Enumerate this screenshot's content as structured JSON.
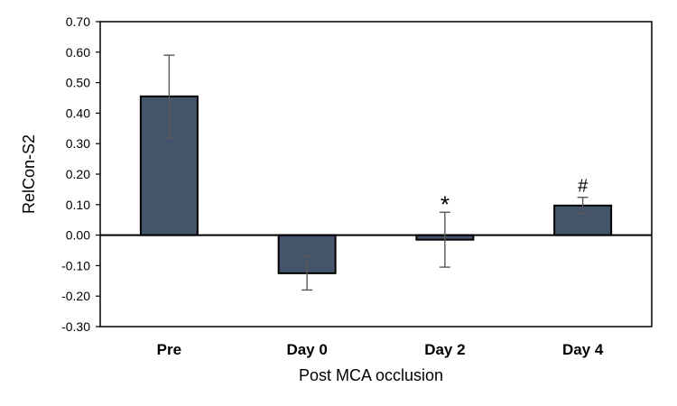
{
  "chart_data": {
    "type": "bar",
    "title": "",
    "xlabel": "Post MCA occlusion",
    "ylabel": "RelCon-S2",
    "categories": [
      "Pre",
      "Day 0",
      "Day 2",
      "Day 4"
    ],
    "values": [
      0.455,
      -0.125,
      -0.015,
      0.097
    ],
    "errors": [
      0.135,
      0.055,
      0.09,
      0.027
    ],
    "annotations": [
      "",
      "",
      "*",
      "#"
    ],
    "ylim": [
      -0.3,
      0.7
    ],
    "yticks": [
      0.7,
      0.6,
      0.5,
      0.4,
      0.3,
      0.2,
      0.1,
      0.0,
      -0.1,
      -0.2,
      -0.3
    ],
    "ytick_labels": [
      "0.70",
      "0.60",
      "0.50",
      "0.40",
      "0.30",
      "0.20",
      "0.10",
      "0.00",
      "-0.10",
      "-0.20",
      "-0.30"
    ],
    "grid": false,
    "colors": {
      "bar_fill": "#44546A",
      "bar_stroke": "#000000",
      "error_bar": "#595959",
      "axis": "#000000"
    }
  }
}
